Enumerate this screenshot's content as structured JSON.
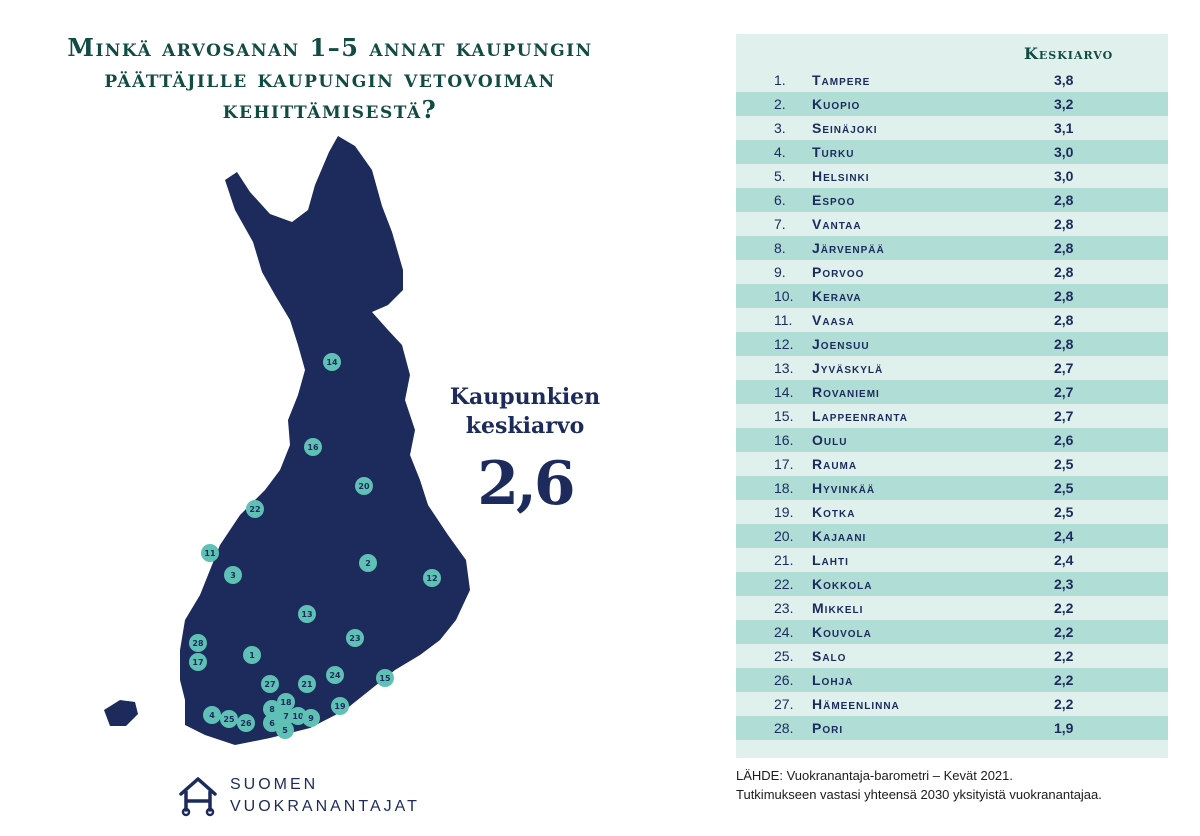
{
  "title": {
    "line1": "Minkä arvosanan 1–5 annat kaupungin",
    "line2": "päättäjille kaupungin vetovoiman",
    "line3": "kehittämisestä?"
  },
  "average": {
    "label_line1": "Kaupunkien",
    "label_line2": "keskiarvo",
    "value": "2,6"
  },
  "logo": {
    "line1": "SUOMEN",
    "line2": "VUOKRANANTAJAT"
  },
  "map_markers": [
    "14",
    "16",
    "20",
    "22",
    "11",
    "3",
    "2",
    "12",
    "13",
    "23",
    "28",
    "17",
    "1",
    "24",
    "15",
    "27",
    "21",
    "18",
    "19",
    "8",
    "7",
    "10",
    "9",
    "4",
    "25",
    "26",
    "6",
    "5"
  ],
  "chart_data": {
    "type": "table",
    "columns": [
      "",
      "",
      "Keskiarvo"
    ],
    "rows": [
      {
        "rank": "1.",
        "city": "Tampere",
        "value": "3,8"
      },
      {
        "rank": "2.",
        "city": "Kuopio",
        "value": "3,2"
      },
      {
        "rank": "3.",
        "city": "Seinäjoki",
        "value": "3,1"
      },
      {
        "rank": "4.",
        "city": "Turku",
        "value": "3,0"
      },
      {
        "rank": "5.",
        "city": "Helsinki",
        "value": "3,0"
      },
      {
        "rank": "6.",
        "city": "Espoo",
        "value": "2,8"
      },
      {
        "rank": "7.",
        "city": "Vantaa",
        "value": "2,8"
      },
      {
        "rank": "8.",
        "city": "Järvenpää",
        "value": "2,8"
      },
      {
        "rank": "9.",
        "city": "Porvoo",
        "value": "2,8"
      },
      {
        "rank": "10.",
        "city": "Kerava",
        "value": "2,8"
      },
      {
        "rank": "11.",
        "city": "Vaasa",
        "value": "2,8"
      },
      {
        "rank": "12.",
        "city": "Joensuu",
        "value": "2,8"
      },
      {
        "rank": "13.",
        "city": "Jyväskylä",
        "value": "2,7"
      },
      {
        "rank": "14.",
        "city": "Rovaniemi",
        "value": "2,7"
      },
      {
        "rank": "15.",
        "city": "Lappeenranta",
        "value": "2,7"
      },
      {
        "rank": "16.",
        "city": "Oulu",
        "value": "2,6"
      },
      {
        "rank": "17.",
        "city": "Rauma",
        "value": "2,5"
      },
      {
        "rank": "18.",
        "city": "Hyvinkää",
        "value": "2,5"
      },
      {
        "rank": "19.",
        "city": "Kotka",
        "value": "2,5"
      },
      {
        "rank": "20.",
        "city": "Kajaani",
        "value": "2,4"
      },
      {
        "rank": "21.",
        "city": "Lahti",
        "value": "2,4"
      },
      {
        "rank": "22.",
        "city": "Kokkola",
        "value": "2,3"
      },
      {
        "rank": "23.",
        "city": "Mikkeli",
        "value": "2,2"
      },
      {
        "rank": "24.",
        "city": "Kouvola",
        "value": "2,2"
      },
      {
        "rank": "25.",
        "city": "Salo",
        "value": "2,2"
      },
      {
        "rank": "26.",
        "city": "Lohja",
        "value": "2,2"
      },
      {
        "rank": "27.",
        "city": "Hämeenlinna",
        "value": "2,2"
      },
      {
        "rank": "28.",
        "city": "Pori",
        "value": "1,9"
      }
    ]
  },
  "source": {
    "line1": "LÄHDE: Vuokranantaja-barometri – Kevät 2021.",
    "line2": "Tutkimukseen vastasi yhteensä 2030 yksityistä vuokranantajaa."
  },
  "colors": {
    "navy": "#1c2a5c",
    "title_green": "#124a44",
    "marker": "#5fc1b5",
    "table_bg": "#dff0ed",
    "row_alt": "#b0ddd5"
  }
}
